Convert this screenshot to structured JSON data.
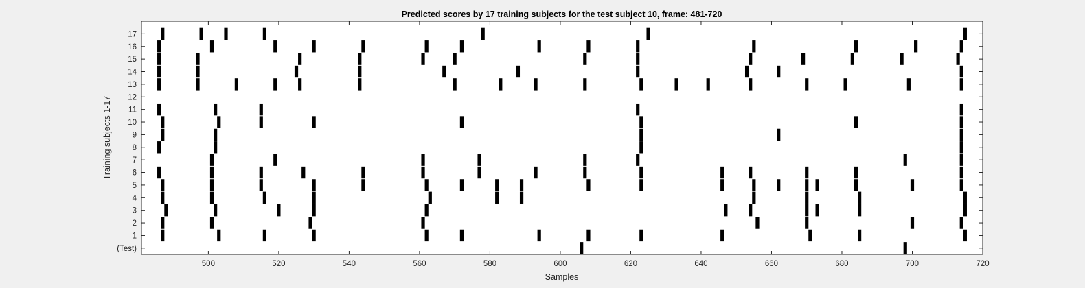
{
  "chart_data": {
    "type": "scatter",
    "title": "Predicted scores by 17 training subjects for the test subject 10, frame: 481-720",
    "xlabel": "Samples",
    "ylabel": "Training subjects 1-17",
    "xlim": [
      481,
      720
    ],
    "x_ticks": [
      500,
      520,
      540,
      560,
      580,
      600,
      620,
      640,
      660,
      680,
      700,
      720
    ],
    "y_ticks": [
      "(Test)",
      "1",
      "2",
      "3",
      "4",
      "5",
      "6",
      "7",
      "8",
      "9",
      "10",
      "11",
      "12",
      "13",
      "14",
      "15",
      "16",
      "17"
    ],
    "grid": false,
    "marker": "black vertical bar",
    "series": [
      {
        "row": "(Test)",
        "x": [
          606,
          698
        ]
      },
      {
        "row": "1",
        "x": [
          487,
          503,
          516,
          530,
          562,
          572,
          594,
          608,
          623,
          646,
          671,
          685,
          715
        ]
      },
      {
        "row": "2",
        "x": [
          487,
          501,
          529,
          561,
          656,
          670,
          700,
          714
        ]
      },
      {
        "row": "3",
        "x": [
          488,
          502,
          520,
          530,
          562,
          647,
          654,
          670,
          673,
          685,
          715
        ]
      },
      {
        "row": "4",
        "x": [
          487,
          501,
          516,
          530,
          563,
          582,
          589,
          655,
          670,
          685,
          715
        ]
      },
      {
        "row": "5",
        "x": [
          487,
          501,
          515,
          530,
          544,
          562,
          572,
          582,
          589,
          608,
          623,
          646,
          655,
          662,
          670,
          673,
          684,
          700,
          714
        ]
      },
      {
        "row": "6",
        "x": [
          486,
          501,
          515,
          527,
          544,
          561,
          577,
          593,
          607,
          623,
          646,
          654,
          670,
          684,
          714
        ]
      },
      {
        "row": "7",
        "x": [
          501,
          519,
          561,
          577,
          607,
          622,
          698,
          714
        ]
      },
      {
        "row": "8",
        "x": [
          486,
          502,
          623,
          714
        ]
      },
      {
        "row": "9",
        "x": [
          487,
          502,
          623,
          662,
          714
        ]
      },
      {
        "row": "10",
        "x": [
          487,
          503,
          515,
          530,
          572,
          623,
          684,
          714
        ]
      },
      {
        "row": "11",
        "x": [
          486,
          502,
          515,
          622,
          714
        ]
      },
      {
        "row": "12",
        "x": []
      },
      {
        "row": "13",
        "x": [
          486,
          497,
          508,
          519,
          526,
          543,
          570,
          583,
          593,
          607,
          623,
          633,
          642,
          654,
          670,
          681,
          699,
          714
        ]
      },
      {
        "row": "14",
        "x": [
          486,
          497,
          525,
          543,
          567,
          588,
          622,
          653,
          662,
          714
        ]
      },
      {
        "row": "15",
        "x": [
          486,
          497,
          526,
          543,
          561,
          570,
          607,
          622,
          654,
          669,
          683,
          697,
          713
        ]
      },
      {
        "row": "16",
        "x": [
          486,
          501,
          519,
          530,
          544,
          562,
          572,
          594,
          608,
          622,
          655,
          684,
          701,
          714
        ]
      },
      {
        "row": "17",
        "x": [
          487,
          498,
          505,
          516,
          578,
          625,
          715
        ]
      }
    ]
  }
}
